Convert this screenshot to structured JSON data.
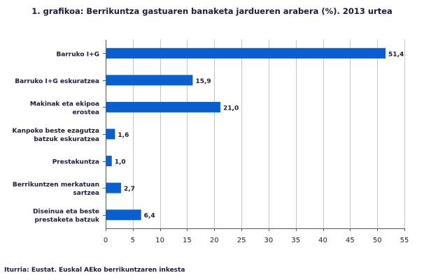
{
  "chart_data": {
    "type": "bar",
    "orientation": "horizontal",
    "title": "1. grafikoa: Berrikuntza gastuaren banaketa jardueren arabera (%). 2013 urtea",
    "categories": [
      [
        "Barruko I+G"
      ],
      [
        "Barruko I+G eskuratzea"
      ],
      [
        "Makinak eta ekipoa",
        "erostea"
      ],
      [
        "Kanpoko beste ezagutza",
        "batzuk eskuratzea"
      ],
      [
        "Prestakuntza"
      ],
      [
        "Berrikuntzen merkatuan",
        "sartzea"
      ],
      [
        "Diseinua eta beste",
        "prestaketa batzuk"
      ]
    ],
    "values": [
      51.4,
      15.9,
      21.0,
      1.6,
      1.0,
      2.7,
      6.4
    ],
    "value_labels": [
      "51,4",
      "15,9",
      "21,0",
      "1,6",
      "1,0",
      "2,7",
      "6,4"
    ],
    "x_ticks": [
      "0",
      "5",
      "10",
      "15",
      "20",
      "25",
      "30",
      "35",
      "40",
      "45",
      "50",
      "55"
    ],
    "xlim": [
      0,
      55
    ],
    "grid": "vertical",
    "bar_color": "#0a5fcf",
    "source": "Iturria: Eustat. Euskal AEko berrikuntzaren inkesta"
  }
}
